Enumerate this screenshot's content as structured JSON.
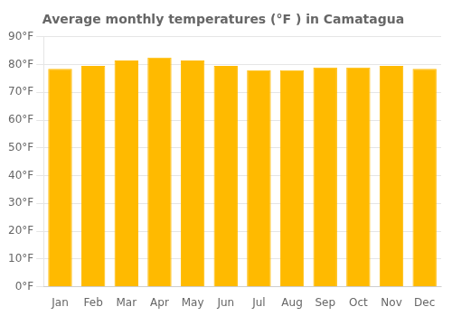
{
  "chart_data": {
    "type": "bar",
    "title": "Average monthly temperatures (°F ) in Camatagua",
    "categories": [
      "Jan",
      "Feb",
      "Mar",
      "Apr",
      "May",
      "Jun",
      "Jul",
      "Aug",
      "Sep",
      "Oct",
      "Nov",
      "Dec"
    ],
    "values": [
      78.5,
      79.5,
      81.5,
      82.5,
      81.5,
      79.5,
      78.0,
      78.0,
      79.0,
      79.0,
      79.5,
      78.5
    ],
    "color": "#FFBA00",
    "ylim": [
      0,
      90
    ],
    "yticks": [
      {
        "value": 0,
        "label": "0°F"
      },
      {
        "value": 10,
        "label": "10°F"
      },
      {
        "value": 20,
        "label": "20°F"
      },
      {
        "value": 30,
        "label": "30°F"
      },
      {
        "value": 40,
        "label": "40°F"
      },
      {
        "value": 50,
        "label": "50°F"
      },
      {
        "value": 60,
        "label": "60°F"
      },
      {
        "value": 70,
        "label": "70°F"
      },
      {
        "value": 80,
        "label": "80°F"
      },
      {
        "value": 90,
        "label": "90°F"
      }
    ],
    "grid": true
  }
}
